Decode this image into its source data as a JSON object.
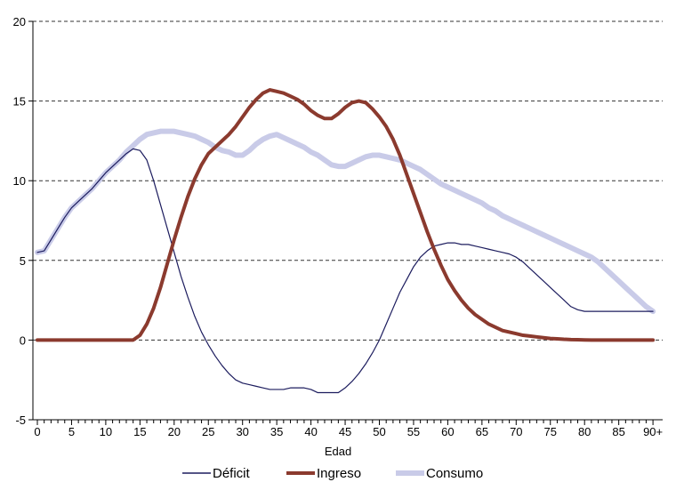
{
  "chart_data": {
    "type": "line",
    "title": "",
    "xlabel": "Edad",
    "ylabel": "",
    "xlim": [
      0,
      90
    ],
    "ylim": [
      -5,
      20
    ],
    "y_ticks": [
      -5,
      0,
      5,
      10,
      15,
      20
    ],
    "x_ticks": [
      0,
      5,
      10,
      15,
      20,
      25,
      30,
      35,
      40,
      45,
      50,
      55,
      60,
      65,
      70,
      75,
      80,
      85,
      90
    ],
    "x_tick_labels": [
      "0",
      "5",
      "10",
      "15",
      "20",
      "25",
      "30",
      "35",
      "40",
      "45",
      "50",
      "55",
      "60",
      "65",
      "70",
      "75",
      "80",
      "85",
      "90+"
    ],
    "grid": "horizontal-dashed",
    "legend_position": "bottom",
    "x": [
      0,
      1,
      2,
      3,
      4,
      5,
      6,
      7,
      8,
      9,
      10,
      11,
      12,
      13,
      14,
      15,
      16,
      17,
      18,
      19,
      20,
      21,
      22,
      23,
      24,
      25,
      26,
      27,
      28,
      29,
      30,
      31,
      32,
      33,
      34,
      35,
      36,
      37,
      38,
      39,
      40,
      41,
      42,
      43,
      44,
      45,
      46,
      47,
      48,
      49,
      50,
      51,
      52,
      53,
      54,
      55,
      56,
      57,
      58,
      59,
      60,
      61,
      62,
      63,
      64,
      65,
      66,
      67,
      68,
      69,
      70,
      71,
      72,
      73,
      74,
      75,
      76,
      77,
      78,
      79,
      80,
      81,
      82,
      83,
      84,
      85,
      86,
      87,
      88,
      89,
      90
    ],
    "series": [
      {
        "name": "Consumo",
        "color": "#c9cbe8",
        "width": 6,
        "values": [
          5.5,
          5.6,
          6.3,
          7.0,
          7.7,
          8.3,
          8.7,
          9.1,
          9.5,
          10.0,
          10.5,
          10.9,
          11.3,
          11.8,
          12.2,
          12.6,
          12.9,
          13.0,
          13.1,
          13.1,
          13.1,
          13.0,
          12.9,
          12.8,
          12.6,
          12.4,
          12.1,
          11.9,
          11.8,
          11.6,
          11.6,
          11.9,
          12.3,
          12.6,
          12.8,
          12.9,
          12.7,
          12.5,
          12.3,
          12.1,
          11.8,
          11.6,
          11.3,
          11.0,
          10.9,
          10.9,
          11.1,
          11.3,
          11.5,
          11.6,
          11.6,
          11.5,
          11.4,
          11.3,
          11.1,
          10.9,
          10.7,
          10.4,
          10.1,
          9.8,
          9.6,
          9.4,
          9.2,
          9.0,
          8.8,
          8.6,
          8.3,
          8.1,
          7.8,
          7.6,
          7.4,
          7.2,
          7.0,
          6.8,
          6.6,
          6.4,
          6.2,
          6.0,
          5.8,
          5.6,
          5.4,
          5.2,
          4.9,
          4.5,
          4.1,
          3.7,
          3.3,
          2.9,
          2.5,
          2.1,
          1.8
        ]
      },
      {
        "name": "Déficit",
        "color": "#1c1c5e",
        "width": 1.2,
        "values": [
          5.5,
          5.6,
          6.3,
          7.0,
          7.7,
          8.3,
          8.7,
          9.1,
          9.5,
          10.0,
          10.5,
          10.9,
          11.3,
          11.7,
          12.0,
          11.9,
          11.3,
          10.0,
          8.5,
          7.0,
          5.5,
          4.0,
          2.7,
          1.5,
          0.5,
          -0.3,
          -1.0,
          -1.6,
          -2.1,
          -2.5,
          -2.7,
          -2.8,
          -2.9,
          -3.0,
          -3.1,
          -3.1,
          -3.1,
          -3.0,
          -3.0,
          -3.0,
          -3.1,
          -3.3,
          -3.3,
          -3.3,
          -3.3,
          -3.0,
          -2.6,
          -2.1,
          -1.5,
          -0.8,
          0.0,
          1.0,
          2.0,
          3.0,
          3.8,
          4.6,
          5.2,
          5.6,
          5.9,
          6.0,
          6.1,
          6.1,
          6.0,
          6.0,
          5.9,
          5.8,
          5.7,
          5.6,
          5.5,
          5.4,
          5.2,
          4.9,
          4.5,
          4.1,
          3.7,
          3.3,
          2.9,
          2.5,
          2.1,
          1.9,
          1.8,
          1.8,
          1.8,
          1.8,
          1.8,
          1.8,
          1.8,
          1.8,
          1.8,
          1.8,
          1.8
        ]
      },
      {
        "name": "Ingreso",
        "color": "#8b3a2e",
        "width": 4,
        "values": [
          0,
          0,
          0,
          0,
          0,
          0,
          0,
          0,
          0,
          0,
          0,
          0,
          0,
          0,
          0,
          0.3,
          1.0,
          2.0,
          3.3,
          4.8,
          6.3,
          7.7,
          9.0,
          10.1,
          11.0,
          11.7,
          12.1,
          12.5,
          12.9,
          13.4,
          14.0,
          14.6,
          15.1,
          15.5,
          15.7,
          15.6,
          15.5,
          15.3,
          15.1,
          14.8,
          14.4,
          14.1,
          13.9,
          13.9,
          14.2,
          14.6,
          14.9,
          15.0,
          14.9,
          14.5,
          14.0,
          13.4,
          12.6,
          11.6,
          10.4,
          9.2,
          8.0,
          6.8,
          5.7,
          4.7,
          3.8,
          3.1,
          2.5,
          2.0,
          1.6,
          1.3,
          1.0,
          0.8,
          0.6,
          0.5,
          0.4,
          0.3,
          0.25,
          0.2,
          0.15,
          0.1,
          0.08,
          0.05,
          0.03,
          0.02,
          0.01,
          0,
          0,
          0,
          0,
          0,
          0,
          0,
          0,
          0,
          0
        ]
      }
    ],
    "legend": [
      {
        "label": "Déficit",
        "color": "#1c1c5e",
        "width": 1.5
      },
      {
        "label": "Ingreso",
        "color": "#8b3a2e",
        "width": 4
      },
      {
        "label": "Consumo",
        "color": "#c9cbe8",
        "width": 6
      }
    ]
  }
}
